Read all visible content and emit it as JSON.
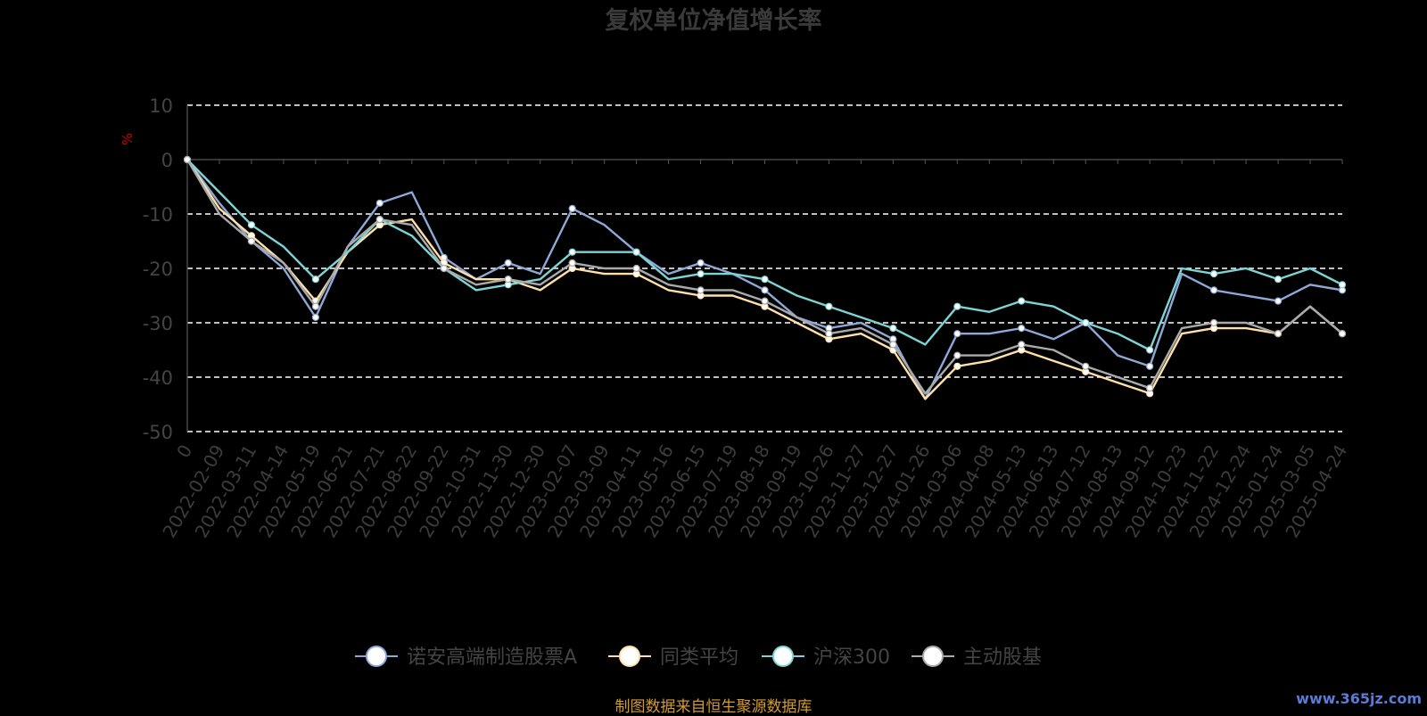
{
  "chart_data": {
    "type": "line",
    "title": "复权单位净值增长率",
    "ylabel": "%",
    "ylim": [
      -50,
      10
    ],
    "yticks": [
      10,
      0,
      -10,
      -20,
      -30,
      -40,
      -50
    ],
    "grid": true,
    "legend_position": "bottom",
    "x": [
      "0",
      "2022-02-09",
      "2022-03-11",
      "2022-04-14",
      "2022-05-19",
      "2022-06-21",
      "2022-07-21",
      "2022-08-22",
      "2022-09-22",
      "2022-10-31",
      "2022-11-30",
      "2022-12-30",
      "2023-02-07",
      "2023-03-09",
      "2023-04-11",
      "2023-05-16",
      "2023-06-15",
      "2023-07-19",
      "2023-08-18",
      "2023-09-19",
      "2023-10-26",
      "2023-11-27",
      "2023-12-27",
      "2024-01-26",
      "2024-03-06",
      "2024-04-08",
      "2024-05-13",
      "2024-06-13",
      "2024-07-12",
      "2024-08-13",
      "2024-09-12",
      "2024-10-23",
      "2024-11-22",
      "2024-12-24",
      "2025-01-24",
      "2025-03-05",
      "2025-04-24"
    ],
    "series": [
      {
        "name": "诺安高端制造股票A",
        "color": "#8fa8d8",
        "values": [
          0,
          -8,
          -15,
          -20,
          -29,
          -16,
          -8,
          -6,
          -18,
          -22,
          -19,
          -21,
          -9,
          -12,
          -17,
          -21,
          -19,
          -21,
          -24,
          -29,
          -31,
          -30,
          -33,
          -44,
          -32,
          -32,
          -31,
          -33,
          -30,
          -36,
          -38,
          -21,
          -24,
          -25,
          -26,
          -23,
          -24
        ]
      },
      {
        "name": "同类平均",
        "color": "#ffe0a8",
        "values": [
          0,
          -9,
          -14,
          -19,
          -26,
          -17,
          -12,
          -11,
          -19,
          -22,
          -22,
          -24,
          -20,
          -21,
          -21,
          -24,
          -25,
          -25,
          -27,
          -30,
          -33,
          -32,
          -35,
          -44,
          -38,
          -37,
          -35,
          -37,
          -39,
          -41,
          -43,
          -32,
          -31,
          -31,
          -32,
          -27,
          -32
        ]
      },
      {
        "name": "沪深300",
        "color": "#7dd4d4",
        "values": [
          0,
          -6,
          -12,
          -16,
          -22,
          -17,
          -11,
          -14,
          -20,
          -24,
          -23,
          -22,
          -17,
          -17,
          -17,
          -22,
          -21,
          -21,
          -22,
          -25,
          -27,
          -29,
          -31,
          -34,
          -27,
          -28,
          -26,
          -27,
          -30,
          -32,
          -35,
          -20,
          -21,
          -20,
          -22,
          -20,
          -23
        ]
      },
      {
        "name": "主动股基",
        "color": "#aaaaaa",
        "values": [
          0,
          -10,
          -15,
          -19,
          -27,
          -16,
          -11,
          -12,
          -20,
          -23,
          -22,
          -23,
          -19,
          -20,
          -20,
          -23,
          -24,
          -24,
          -26,
          -29,
          -32,
          -31,
          -34,
          -43,
          -36,
          -36,
          -34,
          -35,
          -38,
          -40,
          -42,
          -31,
          -30,
          -30,
          -32,
          -27,
          -32
        ]
      }
    ]
  },
  "footer": {
    "source": "制图数据来自恒生聚源数据库",
    "watermark": "www.365jz.com"
  }
}
